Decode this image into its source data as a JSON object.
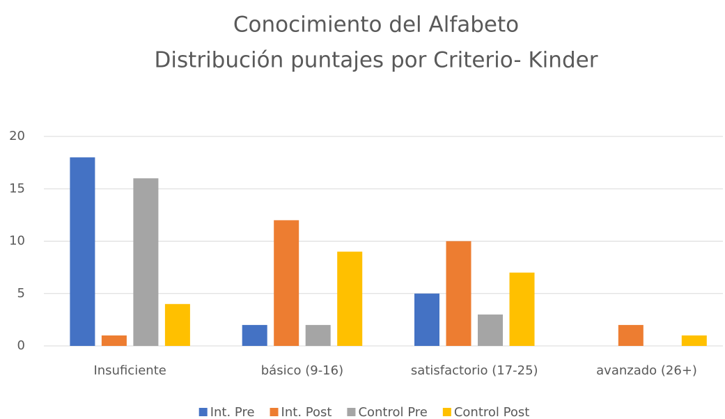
{
  "chart_data": {
    "type": "bar",
    "title": "Conocimiento del Alfabeto",
    "subtitle": "Distribución puntajes por Criterio- Kinder",
    "categories": [
      "Insuficiente",
      "básico (9-16)",
      "satisfactorio (17-25)",
      "avanzado (26+)"
    ],
    "series": [
      {
        "name": "Int. Pre",
        "color": "#4472c4",
        "values": [
          18,
          2,
          5,
          0
        ]
      },
      {
        "name": "Int. Post",
        "color": "#ed7d31",
        "values": [
          1,
          12,
          10,
          2
        ]
      },
      {
        "name": "Control Pre",
        "color": "#a5a5a5",
        "values": [
          16,
          2,
          3,
          0
        ]
      },
      {
        "name": "Control Post",
        "color": "#ffc000",
        "values": [
          4,
          9,
          7,
          1
        ]
      }
    ],
    "ylim": [
      0,
      20
    ],
    "yticks": [
      0,
      5,
      10,
      15,
      20
    ],
    "grid": true,
    "legend": "bottom"
  }
}
